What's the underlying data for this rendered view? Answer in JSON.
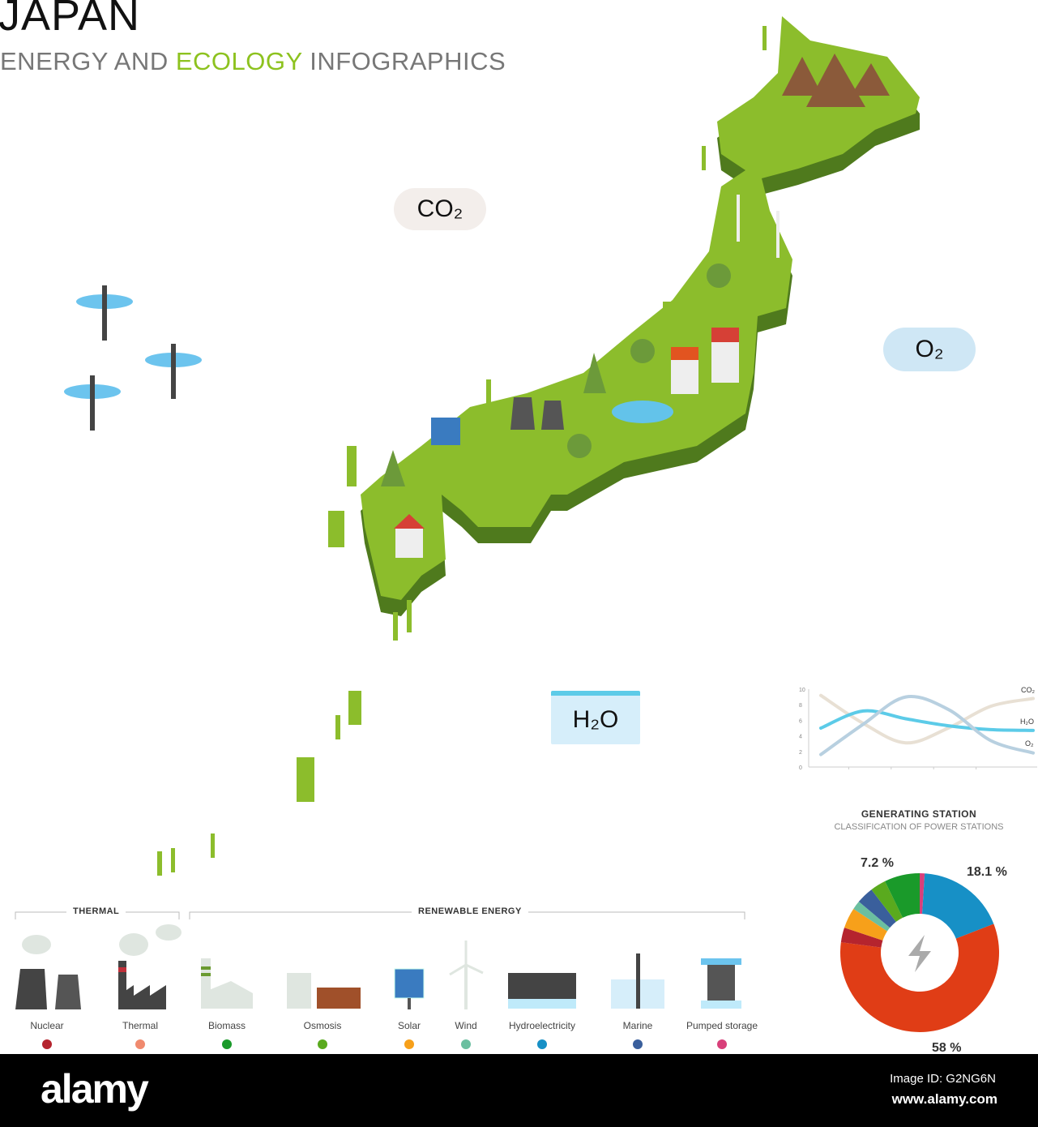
{
  "header": {
    "title": "JAPAN",
    "subtitle_part1": "ENERGY AND ",
    "subtitle_highlight": "ECOLOGY",
    "subtitle_part2": " INFOGRAPHICS"
  },
  "clouds": {
    "co2": "CO₂",
    "o2": "O₂",
    "h2o": "H₂O"
  },
  "legend": {
    "thermal_group": "THERMAL",
    "renewable_group": "RENEWABLE ENERGY",
    "items": [
      {
        "label": "Nuclear",
        "color": "#b5242e",
        "icon": "nuclear-plant-icon"
      },
      {
        "label": "Thermal",
        "color": "#f08a6e",
        "icon": "thermal-factory-icon"
      },
      {
        "label": "Biomass",
        "color": "#1a9a2a",
        "icon": "biomass-plant-icon"
      },
      {
        "label": "Osmosis",
        "color": "#5aaa1e",
        "icon": "osmosis-plant-icon"
      },
      {
        "label": "Solar",
        "color": "#f7a01a",
        "icon": "solar-panel-icon"
      },
      {
        "label": "Wind",
        "color": "#6bbfa0",
        "icon": "wind-turbine-icon"
      },
      {
        "label": "Hydroelectricity",
        "color": "#1790c6",
        "icon": "hydro-dam-icon"
      },
      {
        "label": "Marine",
        "color": "#3a5f9c",
        "icon": "marine-turbine-icon"
      },
      {
        "label": "Pumped storage",
        "color": "#d8407a",
        "icon": "pumped-storage-icon"
      }
    ]
  },
  "chart_data": [
    {
      "type": "line",
      "ylim": [
        0,
        10
      ],
      "yticks": [
        "0",
        "2",
        "4",
        "6",
        "8",
        "10"
      ],
      "x": [
        0,
        1,
        2,
        3,
        4,
        5
      ],
      "grid": false,
      "series": [
        {
          "name": "CO₂",
          "color": "#e8e0d4",
          "values": [
            9.2,
            5.6,
            3.1,
            5.0,
            7.8,
            8.8
          ]
        },
        {
          "name": "H₂O",
          "color": "#5ccbe8",
          "values": [
            5.0,
            7.2,
            6.2,
            5.3,
            4.8,
            4.7
          ]
        },
        {
          "name": "O₂",
          "color": "#b8d0e0",
          "values": [
            1.6,
            5.5,
            9.0,
            7.4,
            3.4,
            1.8
          ]
        }
      ]
    },
    {
      "type": "pie",
      "title": "GENERATING STATION",
      "subtitle": "CLASSIFICATION OF POWER STATIONS",
      "slices": [
        {
          "category": "Pumped storage",
          "value": 1.0,
          "color": "#d8407a"
        },
        {
          "category": "Hydroelectricity",
          "value": 18.1,
          "color": "#1790c6",
          "label": "18.1 %"
        },
        {
          "category": "Thermal",
          "value": 58,
          "color": "#e03d16",
          "label": "58 %"
        },
        {
          "category": "Nuclear",
          "value": 3.0,
          "color": "#b5242e"
        },
        {
          "category": "Solar",
          "value": 4.2,
          "color": "#f7a01a"
        },
        {
          "category": "Wind",
          "value": 1.8,
          "color": "#6bbfa0"
        },
        {
          "category": "Marine",
          "value": 3.5,
          "color": "#3a5f9c"
        },
        {
          "category": "Osmosis",
          "value": 3.2,
          "color": "#5aaa1e"
        },
        {
          "category": "Biomass",
          "value": 7.2,
          "color": "#1a9a2a",
          "label": "7.2 %"
        }
      ],
      "center_icon": "lightning-bolt-icon"
    }
  ],
  "footer": {
    "logo": "alamy",
    "image_id": "Image ID: G2NG6N",
    "site": "www.alamy.com"
  }
}
